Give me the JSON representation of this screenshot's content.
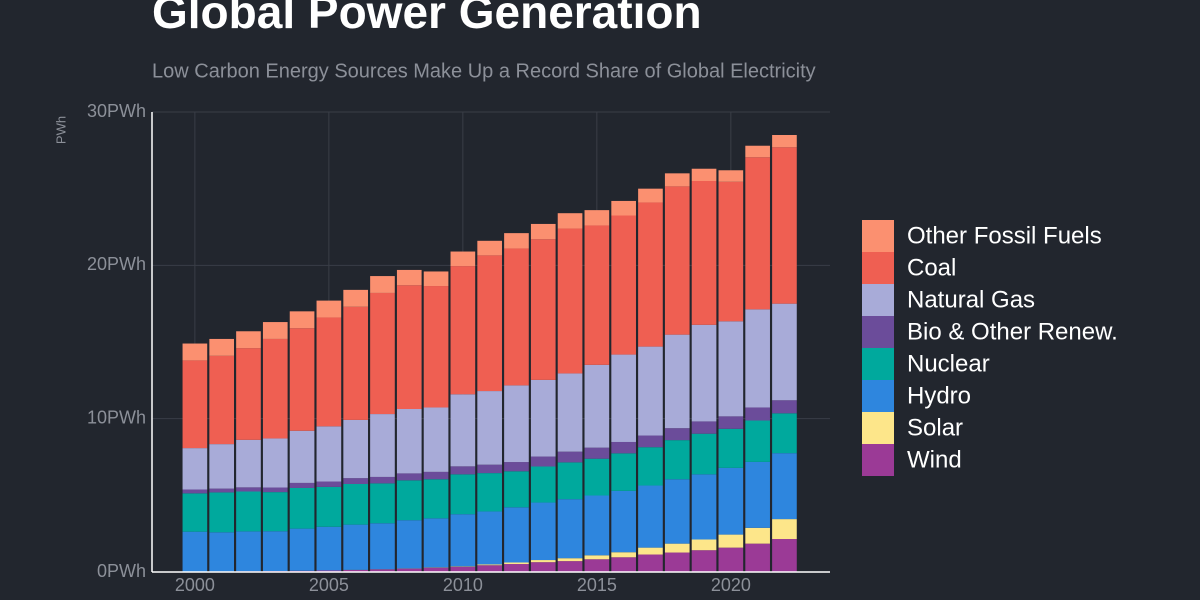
{
  "chart_data": {
    "type": "stacked-bar",
    "title": "Global Power Generation",
    "subtitle": "Low Carbon Energy Sources Make Up a Record Share of Global Electricity",
    "y_label": "PWh",
    "x": [
      2000,
      2001,
      2002,
      2003,
      2004,
      2005,
      2006,
      2007,
      2008,
      2009,
      2010,
      2011,
      2012,
      2013,
      2014,
      2015,
      2016,
      2017,
      2018,
      2019,
      2020,
      2021,
      2022
    ],
    "xlim": [
      1998.4,
      2023.7
    ],
    "xticks": [
      2000,
      2005,
      2010,
      2015,
      2020
    ],
    "ylim": [
      0,
      30
    ],
    "yticks": [
      {
        "value": 0,
        "label": "0PWh"
      },
      {
        "value": 10,
        "label": "10PWh"
      },
      {
        "value": 20,
        "label": "20PWh"
      },
      {
        "value": 30,
        "label": "30PWh"
      }
    ],
    "grid": true,
    "legend": "right",
    "series": [
      {
        "name": "Wind",
        "color": "#9b3a96",
        "values": [
          0.03,
          0.04,
          0.05,
          0.06,
          0.08,
          0.1,
          0.13,
          0.17,
          0.22,
          0.28,
          0.34,
          0.44,
          0.52,
          0.64,
          0.71,
          0.83,
          0.96,
          1.14,
          1.27,
          1.42,
          1.59,
          1.85,
          2.15
        ]
      },
      {
        "name": "Solar",
        "color": "#fde68a",
        "values": [
          0,
          0,
          0,
          0,
          0,
          0,
          0.01,
          0.01,
          0.01,
          0.02,
          0.03,
          0.06,
          0.1,
          0.14,
          0.19,
          0.26,
          0.33,
          0.45,
          0.58,
          0.7,
          0.85,
          1.03,
          1.3
        ]
      },
      {
        "name": "Hydro",
        "color": "#2e86de",
        "values": [
          2.6,
          2.55,
          2.6,
          2.6,
          2.75,
          2.85,
          2.95,
          3.0,
          3.15,
          3.2,
          3.4,
          3.45,
          3.6,
          3.75,
          3.85,
          3.9,
          4.0,
          4.05,
          4.2,
          4.25,
          4.35,
          4.3,
          4.3
        ]
      },
      {
        "name": "Nuclear",
        "color": "#00a99d",
        "values": [
          2.5,
          2.6,
          2.6,
          2.55,
          2.65,
          2.6,
          2.65,
          2.6,
          2.6,
          2.55,
          2.6,
          2.5,
          2.35,
          2.35,
          2.4,
          2.4,
          2.45,
          2.5,
          2.55,
          2.65,
          2.55,
          2.7,
          2.6
        ]
      },
      {
        "name": "Bio & Other Renew.",
        "color": "#6b4c9a",
        "values": [
          0.25,
          0.25,
          0.27,
          0.3,
          0.33,
          0.35,
          0.38,
          0.42,
          0.45,
          0.48,
          0.52,
          0.55,
          0.6,
          0.65,
          0.7,
          0.72,
          0.74,
          0.76,
          0.78,
          0.8,
          0.81,
          0.85,
          0.85
        ]
      },
      {
        "name": "Natural Gas",
        "color": "#a8abd8",
        "values": [
          2.7,
          2.9,
          3.1,
          3.2,
          3.4,
          3.6,
          3.8,
          4.1,
          4.2,
          4.2,
          4.7,
          4.8,
          5.0,
          5.0,
          5.1,
          5.4,
          5.7,
          5.8,
          6.1,
          6.3,
          6.2,
          6.4,
          6.3
        ]
      },
      {
        "name": "Coal",
        "color": "#ef5f52",
        "values": [
          5.72,
          5.76,
          5.98,
          6.49,
          6.69,
          7.1,
          7.38,
          7.9,
          8.07,
          7.92,
          8.36,
          8.85,
          8.93,
          9.17,
          9.45,
          9.09,
          9.07,
          9.4,
          9.67,
          9.38,
          9.1,
          9.92,
          10.2
        ]
      },
      {
        "name": "Other Fossil Fuels",
        "color": "#fb9070",
        "values": [
          1.1,
          1.1,
          1.1,
          1.1,
          1.1,
          1.1,
          1.1,
          1.1,
          1.0,
          0.95,
          0.95,
          0.95,
          1.0,
          1.0,
          1.0,
          1.0,
          0.95,
          0.9,
          0.85,
          0.8,
          0.75,
          0.75,
          0.8
        ]
      }
    ]
  }
}
